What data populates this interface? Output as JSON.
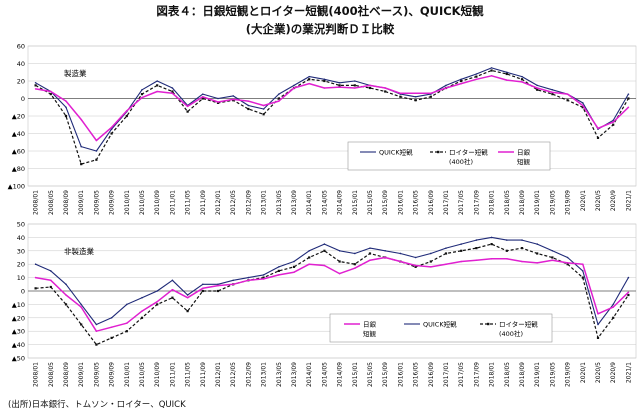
{
  "title_line1": "図表４：日銀短観とロイター短観(400社ベース)、QUICK短観",
  "title_line2": "(大企業)の業況判断ＤＩ比較",
  "source": "(出所)日本銀行、トムソン・ロイター、QUICK",
  "colors": {
    "quick": "#1f2a78",
    "reuters": "#111111",
    "tankan": "#e020d0",
    "grid": "#c8c8c8"
  },
  "x_ticks": [
    "2008/01",
    "2008/05",
    "2008/09",
    "2009/01",
    "2009/05",
    "2009/09",
    "2010/01",
    "2010/05",
    "2010/09",
    "2011/01",
    "2011/05",
    "2011/09",
    "2012/01",
    "2012/05",
    "2012/09",
    "2013/01",
    "2013/05",
    "2013/09",
    "2014/01",
    "2014/05",
    "2014/09",
    "2015/01",
    "2015/05",
    "2015/09",
    "2016/01",
    "2016/05",
    "2016/09",
    "2017/01",
    "2017/05",
    "2017/09",
    "2018/01",
    "2018/05",
    "2018/09",
    "2019/01",
    "2019/05",
    "2019/09",
    "2020/1",
    "2020/5",
    "2020/9",
    "2021/1"
  ],
  "chart_data": [
    {
      "type": "line",
      "panel_label": "製造業",
      "ylim": [
        -100,
        60
      ],
      "y_ticks": [
        60,
        40,
        20,
        0,
        -20,
        -40,
        -60,
        -80,
        -100
      ],
      "y_tick_labels": [
        "60",
        "40",
        "20",
        "0",
        "▲20",
        "▲40",
        "▲60",
        "▲80",
        "▲100"
      ],
      "x": [
        "2008/01",
        "2008/05",
        "2008/09",
        "2009/01",
        "2009/05",
        "2009/09",
        "2010/01",
        "2010/05",
        "2010/09",
        "2011/01",
        "2011/05",
        "2011/09",
        "2012/01",
        "2012/05",
        "2012/09",
        "2013/01",
        "2013/05",
        "2013/09",
        "2014/01",
        "2014/05",
        "2014/09",
        "2015/01",
        "2015/05",
        "2015/09",
        "2016/01",
        "2016/05",
        "2016/09",
        "2017/01",
        "2017/05",
        "2017/09",
        "2018/01",
        "2018/05",
        "2018/09",
        "2019/01",
        "2019/05",
        "2019/09",
        "2020/1",
        "2020/5",
        "2020/9",
        "2021/1"
      ],
      "legend": [
        {
          "key": "quick",
          "label": "QUICK短観"
        },
        {
          "key": "reuters",
          "label": "ロイター短観",
          "label2": "(400社)"
        },
        {
          "key": "tankan",
          "label": "日銀",
          "label2": "短観"
        }
      ],
      "series": [
        {
          "key": "quick",
          "values": [
            18,
            8,
            -10,
            -55,
            -60,
            -35,
            -15,
            10,
            20,
            12,
            -8,
            5,
            0,
            3,
            -8,
            -12,
            5,
            15,
            25,
            22,
            18,
            20,
            15,
            12,
            5,
            2,
            5,
            15,
            22,
            28,
            35,
            30,
            25,
            15,
            10,
            5,
            -5,
            -35,
            -25,
            5
          ]
        },
        {
          "key": "reuters",
          "values": [
            15,
            5,
            -20,
            -75,
            -70,
            -40,
            -20,
            5,
            15,
            8,
            -15,
            0,
            -5,
            -2,
            -12,
            -18,
            0,
            12,
            22,
            20,
            15,
            15,
            12,
            8,
            2,
            -2,
            2,
            12,
            20,
            25,
            32,
            28,
            22,
            10,
            5,
            -2,
            -10,
            -45,
            -30,
            0
          ]
        },
        {
          "key": "tankan",
          "values": [
            11,
            8,
            -3,
            -24,
            -48,
            -33,
            -14,
            1,
            8,
            6,
            -9,
            2,
            -4,
            -1,
            -3,
            -8,
            -3,
            12,
            17,
            12,
            13,
            12,
            15,
            12,
            6,
            6,
            6,
            12,
            17,
            22,
            26,
            21,
            19,
            12,
            7,
            5,
            -8,
            -34,
            -27,
            -10
          ]
        }
      ]
    },
    {
      "type": "line",
      "panel_label": "非製造業",
      "ylim": [
        -50,
        50
      ],
      "y_ticks": [
        50,
        40,
        30,
        20,
        10,
        0,
        -10,
        -20,
        -30,
        -40,
        -50
      ],
      "y_tick_labels": [
        "50",
        "40",
        "30",
        "20",
        "10",
        "0",
        "▲10",
        "▲20",
        "▲30",
        "▲40",
        "▲50"
      ],
      "x": [
        "2008/01",
        "2008/05",
        "2008/09",
        "2009/01",
        "2009/05",
        "2009/09",
        "2010/01",
        "2010/05",
        "2010/09",
        "2011/01",
        "2011/05",
        "2011/09",
        "2012/01",
        "2012/05",
        "2012/09",
        "2013/01",
        "2013/05",
        "2013/09",
        "2014/01",
        "2014/05",
        "2014/09",
        "2015/01",
        "2015/05",
        "2015/09",
        "2016/01",
        "2016/05",
        "2016/09",
        "2017/01",
        "2017/05",
        "2017/09",
        "2018/01",
        "2018/05",
        "2018/09",
        "2019/01",
        "2019/05",
        "2019/09",
        "2020/1",
        "2020/5",
        "2020/9",
        "2021/1"
      ],
      "legend": [
        {
          "key": "tankan",
          "label": "日銀",
          "label2": "短観"
        },
        {
          "key": "quick",
          "label": "QUICK短観"
        },
        {
          "key": "reuters",
          "label": "ロイター短観",
          "label2": "(400社)"
        }
      ],
      "series": [
        {
          "key": "quick",
          "values": [
            20,
            15,
            5,
            -10,
            -25,
            -20,
            -10,
            -5,
            0,
            8,
            -3,
            5,
            5,
            8,
            10,
            12,
            18,
            22,
            30,
            35,
            30,
            28,
            32,
            30,
            28,
            25,
            28,
            32,
            35,
            38,
            40,
            38,
            38,
            35,
            30,
            25,
            15,
            -25,
            -10,
            10
          ]
        },
        {
          "key": "reuters",
          "values": [
            2,
            3,
            -10,
            -25,
            -40,
            -35,
            -30,
            -20,
            -10,
            -5,
            -15,
            0,
            0,
            5,
            8,
            10,
            15,
            18,
            25,
            30,
            22,
            20,
            28,
            25,
            22,
            18,
            22,
            28,
            30,
            32,
            35,
            30,
            32,
            28,
            25,
            20,
            10,
            -35,
            -20,
            -3
          ]
        },
        {
          "key": "tankan",
          "values": [
            10,
            8,
            -3,
            -12,
            -30,
            -27,
            -24,
            -15,
            -8,
            1,
            -5,
            2,
            4,
            5,
            8,
            9,
            12,
            14,
            20,
            19,
            13,
            17,
            23,
            25,
            22,
            19,
            18,
            20,
            22,
            23,
            24,
            24,
            22,
            21,
            23,
            21,
            20,
            -17,
            -12,
            -1
          ]
        }
      ]
    }
  ]
}
